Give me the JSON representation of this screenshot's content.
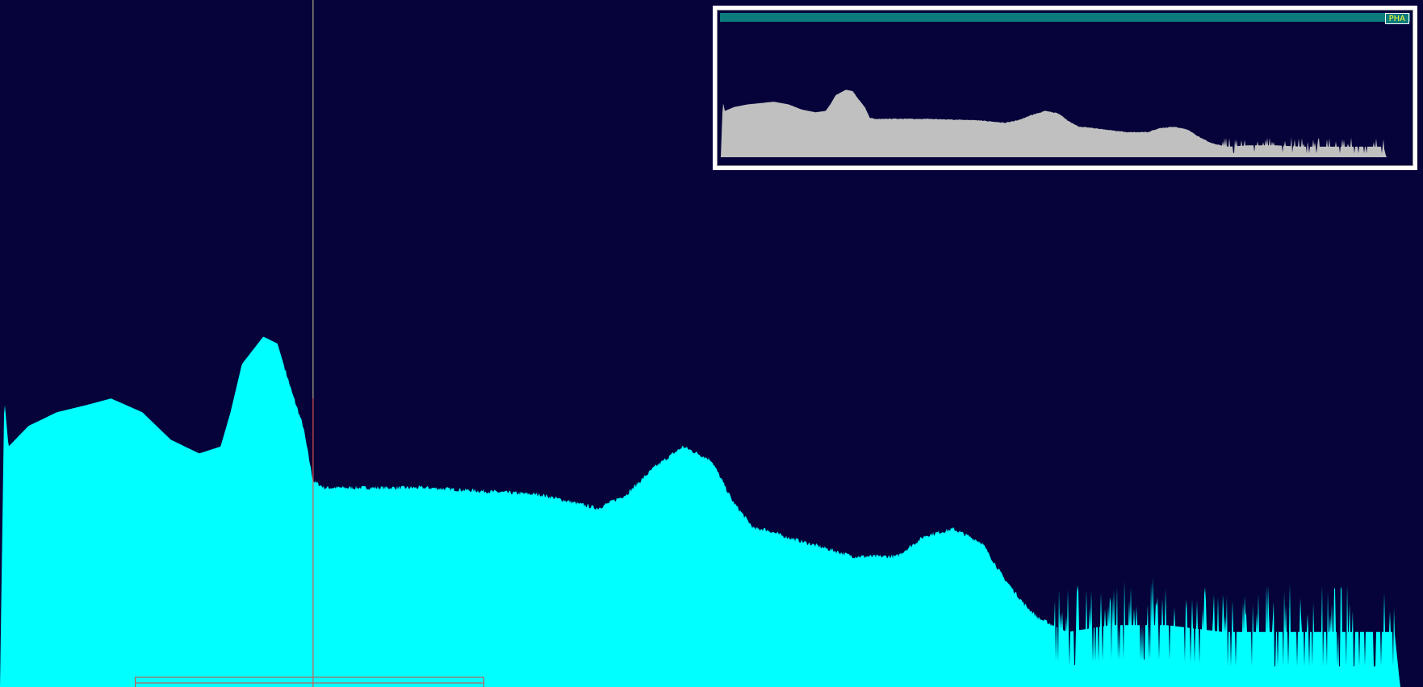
{
  "overview": {
    "tag_label": "PHA"
  },
  "colors": {
    "background": "#05033a",
    "spectrum_fill": "#00ffff",
    "overview_fill": "#c0c0c0",
    "cursor_line": "#d0c890",
    "selection_box": "#e04040",
    "titlebar": "#0c7b7b",
    "tag_text": "#ffff3a"
  },
  "chart_data": {
    "type": "area",
    "title": "",
    "xlabel": "",
    "ylabel": "",
    "grid": false,
    "xlim": [
      0,
      1
    ],
    "ylim": [
      0,
      1
    ],
    "cursor_x": 0.22,
    "selection_range": [
      0.095,
      0.34
    ],
    "series": [
      {
        "x": [
          0,
          0.003,
          0.006,
          0.02,
          0.04,
          0.06,
          0.078,
          0.1,
          0.12,
          0.14,
          0.155,
          0.162,
          0.17,
          0.185,
          0.195,
          0.205,
          0.213,
          0.22,
          0.228,
          0.236,
          0.25,
          0.3,
          0.38,
          0.42,
          0.44,
          0.46,
          0.48,
          0.5,
          0.515,
          0.53,
          0.537,
          0.55,
          0.6,
          0.63,
          0.65,
          0.67,
          0.69,
          0.705,
          0.72,
          0.73,
          0.74,
          0.75,
          0.78,
          0.82,
          0.86,
          0.9,
          0.94,
          0.98,
          0.984
        ],
        "y": [
          0.0,
          0.42,
          0.35,
          0.38,
          0.4,
          0.41,
          0.42,
          0.4,
          0.36,
          0.34,
          0.35,
          0.4,
          0.47,
          0.51,
          0.5,
          0.43,
          0.38,
          0.3,
          0.29,
          0.29,
          0.29,
          0.29,
          0.28,
          0.26,
          0.28,
          0.32,
          0.35,
          0.33,
          0.27,
          0.23,
          0.23,
          0.22,
          0.19,
          0.19,
          0.22,
          0.23,
          0.21,
          0.16,
          0.12,
          0.1,
          0.09,
          0.08,
          0.09,
          0.09,
          0.08,
          0.08,
          0.08,
          0.08,
          0.0
        ]
      }
    ]
  }
}
